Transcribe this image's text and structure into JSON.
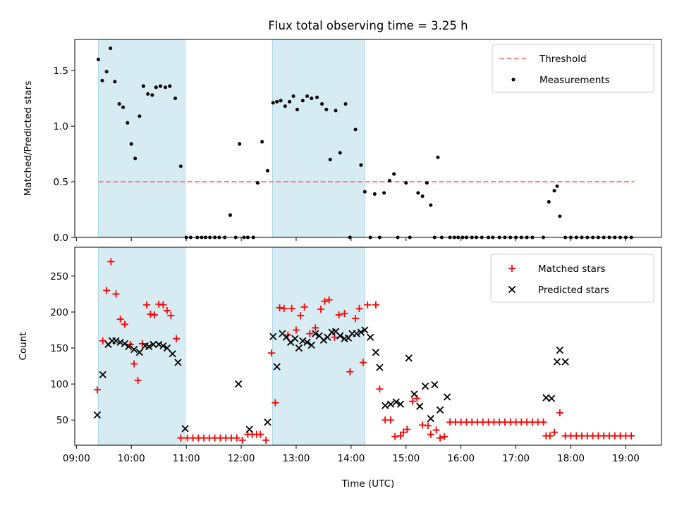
{
  "chart_data": {
    "title": "Flux total observing time = 3.25 h",
    "xlabel": "Time (UTC)",
    "x_tick_labels": [
      "09:00",
      "10:00",
      "11:00",
      "12:00",
      "13:00",
      "14:00",
      "15:00",
      "16:00",
      "17:00",
      "18:00",
      "19:00"
    ],
    "x_tick_hours": [
      9,
      10,
      11,
      12,
      13,
      14,
      15,
      16,
      17,
      18,
      19
    ],
    "x_range_hours": [
      8.97,
      19.65
    ],
    "shaded_intervals_hours": [
      [
        9.4,
        10.98
      ],
      [
        12.57,
        14.25
      ]
    ],
    "shade_color": "#add8e6",
    "panels": [
      {
        "type": "scatter",
        "ylabel": "Matched/Predicted stars",
        "ylim": [
          0,
          1.78
        ],
        "y_ticks": [
          0,
          0.5,
          1.0,
          1.5
        ],
        "y_tick_labels": [
          "0.0",
          "0.5",
          "1.0",
          "1.5"
        ],
        "legend": [
          "Threshold",
          "Measurements"
        ],
        "threshold": {
          "name": "Threshold",
          "y": 0.5,
          "x_range": [
            9.4,
            19.15
          ],
          "color": "#ff7b7b"
        },
        "series": [
          {
            "name": "Measurements",
            "color": "#000000",
            "x": [
              9.4,
              9.47,
              9.55,
              9.62,
              9.7,
              9.78,
              9.85,
              9.93,
              10.0,
              10.07,
              10.15,
              10.22,
              10.3,
              10.38,
              10.45,
              10.53,
              10.62,
              10.7,
              10.8,
              10.9,
              11.0,
              11.08,
              11.2,
              11.28,
              11.35,
              11.43,
              11.52,
              11.6,
              11.7,
              11.8,
              11.9,
              11.97,
              12.05,
              12.12,
              12.22,
              12.3,
              12.38,
              12.48,
              12.58,
              12.65,
              12.72,
              12.8,
              12.88,
              12.95,
              13.02,
              13.12,
              13.2,
              13.28,
              13.38,
              13.47,
              13.55,
              13.62,
              13.72,
              13.8,
              13.9,
              13.98,
              14.08,
              14.18,
              14.25,
              14.35,
              14.43,
              14.52,
              14.6,
              14.7,
              14.78,
              14.85,
              15.0,
              15.07,
              15.22,
              15.3,
              15.38,
              15.45,
              15.52,
              15.58,
              15.65,
              15.8,
              15.88,
              15.95,
              16.03,
              16.1,
              16.2,
              16.28,
              16.38,
              16.5,
              16.58,
              16.7,
              16.8,
              16.9,
              17.0,
              17.1,
              17.2,
              17.3,
              17.5,
              17.6,
              17.7,
              17.75,
              17.8,
              17.9,
              18.0,
              18.1,
              18.2,
              18.3,
              18.4,
              18.5,
              18.6,
              18.7,
              18.8,
              18.9,
              19.0,
              19.1
            ],
            "y": [
              1.6,
              1.41,
              1.49,
              1.7,
              1.4,
              1.2,
              1.17,
              1.03,
              0.84,
              0.71,
              1.09,
              1.36,
              1.29,
              1.28,
              1.35,
              1.36,
              1.35,
              1.36,
              1.25,
              0.64,
              0.0,
              0.0,
              0.0,
              0.0,
              0.0,
              0.0,
              0.0,
              0.0,
              0.0,
              0.2,
              0.0,
              0.84,
              0.0,
              0.0,
              0.0,
              0.49,
              0.86,
              0.6,
              1.21,
              1.22,
              1.23,
              1.18,
              1.22,
              1.27,
              1.15,
              1.23,
              1.27,
              1.25,
              1.26,
              1.2,
              1.15,
              0.7,
              1.14,
              0.76,
              1.2,
              0.0,
              0.97,
              0.65,
              0.41,
              0.0,
              0.39,
              0.0,
              0.4,
              0.51,
              0.57,
              0.0,
              0.49,
              0.0,
              0.4,
              0.37,
              0.49,
              0.29,
              0.0,
              0.72,
              0.0,
              0.0,
              0.0,
              0.0,
              0.0,
              0.0,
              0.0,
              0.0,
              0.0,
              0.0,
              0.0,
              0.0,
              0.0,
              0.0,
              0.0,
              0.0,
              0.0,
              0.0,
              0.0,
              0.32,
              0.42,
              0.46,
              0.19,
              0.0,
              0.0,
              0.0,
              0.0,
              0.0,
              0.0,
              0.0,
              0.0,
              0.0,
              0.0,
              0.0,
              0.0,
              0.0
            ]
          }
        ]
      },
      {
        "type": "scatter",
        "ylabel": "Count",
        "ylim": [
          15,
          290
        ],
        "y_ticks": [
          50,
          100,
          150,
          200,
          250
        ],
        "y_tick_labels": [
          "50",
          "100",
          "150",
          "200",
          "250"
        ],
        "legend": [
          "Matched stars",
          "Predicted stars"
        ],
        "series": [
          {
            "name": "Matched stars",
            "marker": "plus",
            "color": "#ff0000",
            "x": [
              9.38,
              9.48,
              9.55,
              9.63,
              9.72,
              9.8,
              9.88,
              9.98,
              10.05,
              10.12,
              10.2,
              10.28,
              10.35,
              10.42,
              10.5,
              10.58,
              10.65,
              10.72,
              10.82,
              10.9,
              11.02,
              11.12,
              11.22,
              11.32,
              11.42,
              11.52,
              11.62,
              11.72,
              11.82,
              11.92,
              12.02,
              12.12,
              12.2,
              12.28,
              12.35,
              12.45,
              12.55,
              12.62,
              12.7,
              12.78,
              12.85,
              12.92,
              13.0,
              13.08,
              13.15,
              13.25,
              13.35,
              13.45,
              13.52,
              13.6,
              13.7,
              13.78,
              13.88,
              13.98,
              14.08,
              14.15,
              14.22,
              14.3,
              14.45,
              14.52,
              14.62,
              14.72,
              14.8,
              14.9,
              14.95,
              15.02,
              15.12,
              15.2,
              15.3,
              15.4,
              15.45,
              15.55,
              15.62,
              15.7,
              15.8,
              15.9,
              16.0,
              16.1,
              16.2,
              16.3,
              16.4,
              16.5,
              16.6,
              16.7,
              16.8,
              16.9,
              17.0,
              17.1,
              17.2,
              17.3,
              17.4,
              17.5,
              17.55,
              17.62,
              17.7,
              17.8,
              17.9,
              18.0,
              18.1,
              18.2,
              18.3,
              18.4,
              18.5,
              18.6,
              18.7,
              18.8,
              18.9,
              19.0,
              19.1
            ],
            "y": [
              92,
              160,
              230,
              270,
              225,
              190,
              183,
              155,
              128,
              105,
              156,
              210,
              197,
              196,
              211,
              210,
              202,
              195,
              163,
              25,
              25,
              25,
              25,
              25,
              25,
              25,
              25,
              25,
              25,
              25,
              22,
              30,
              30,
              30,
              30,
              22,
              143,
              74,
              206,
              205,
              168,
              205,
              175,
              195,
              207,
              170,
              178,
              204,
              215,
              217,
              165,
              196,
              198,
              117,
              191,
              205,
              130,
              210,
              210,
              93,
              50,
              50,
              27,
              28,
              33,
              37,
              76,
              80,
              43,
              42,
              30,
              36,
              25,
              27,
              47,
              47,
              47,
              47,
              47,
              47,
              47,
              47,
              47,
              47,
              47,
              47,
              47,
              47,
              47,
              47,
              47,
              47,
              28,
              28,
              33,
              60,
              28,
              28,
              28,
              28,
              28,
              28,
              28,
              28,
              28,
              28,
              28,
              28,
              28
            ]
          },
          {
            "name": "Predicted stars",
            "marker": "x",
            "color": "#000000",
            "x": [
              9.38,
              9.48,
              9.58,
              9.65,
              9.72,
              9.8,
              9.88,
              9.95,
              10.05,
              10.15,
              10.25,
              10.32,
              10.4,
              10.5,
              10.58,
              10.65,
              10.75,
              10.85,
              10.98,
              11.95,
              12.15,
              12.48,
              12.58,
              12.65,
              12.75,
              12.82,
              12.9,
              12.98,
              13.05,
              13.12,
              13.2,
              13.28,
              13.35,
              13.42,
              13.5,
              13.57,
              13.65,
              13.72,
              13.8,
              13.88,
              13.95,
              14.02,
              14.1,
              14.18,
              14.25,
              14.35,
              14.45,
              14.52,
              14.62,
              14.72,
              14.82,
              14.9,
              15.05,
              15.15,
              15.25,
              15.35,
              15.45,
              15.52,
              15.62,
              15.75,
              17.55,
              17.65,
              17.75,
              17.8,
              17.9
            ],
            "y": [
              57,
              113,
              155,
              160,
              160,
              158,
              156,
              152,
              148,
              144,
              153,
              152,
              155,
              155,
              153,
              150,
              142,
              130,
              38,
              100,
              37,
              47,
              166,
              124,
              170,
              165,
              158,
              163,
              150,
              160,
              158,
              154,
              170,
              167,
              161,
              165,
              172,
              173,
              167,
              163,
              164,
              170,
              170,
              172,
              175,
              165,
              144,
              123,
              70,
              72,
              75,
              72,
              136,
              86,
              69,
              97,
              52,
              99,
              64,
              82,
              81,
              80,
              131,
              147,
              131
            ]
          }
        ]
      }
    ]
  }
}
